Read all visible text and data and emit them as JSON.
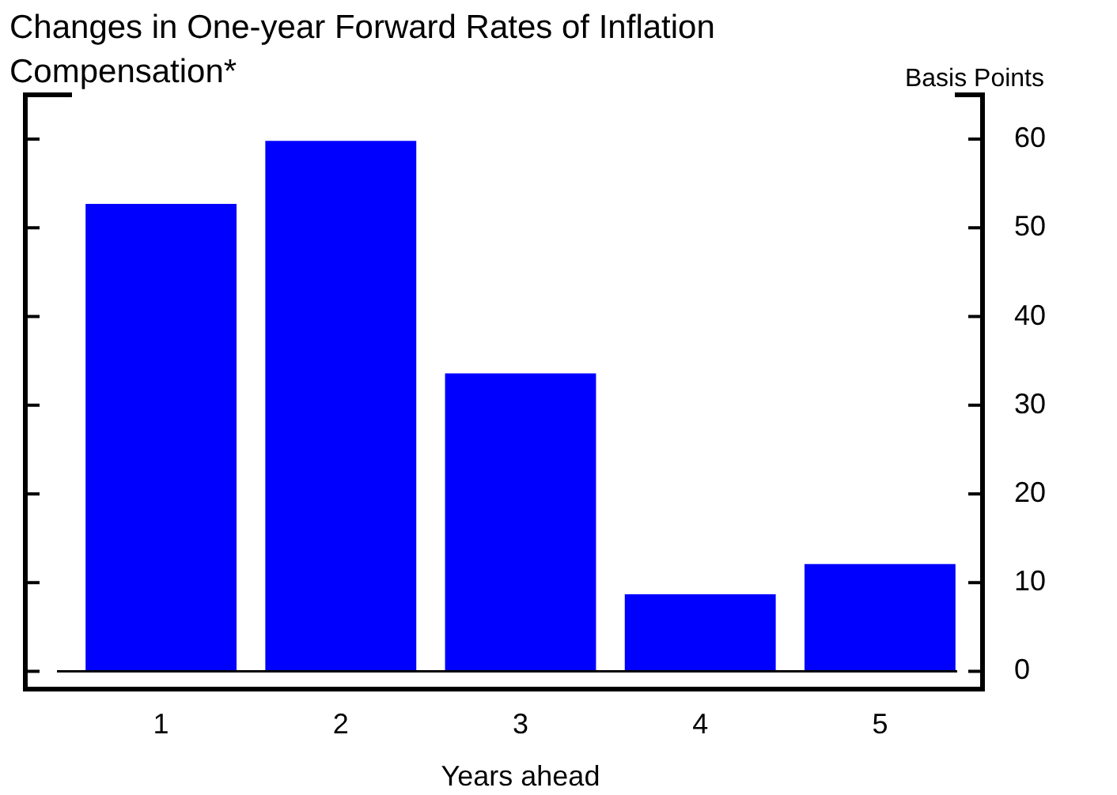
{
  "chart_data": {
    "type": "bar",
    "title": "Changes in One-year Forward Rates of Inflation Compensation*",
    "ylabel": "Basis Points",
    "xlabel": "Years ahead",
    "categories": [
      "1",
      "2",
      "3",
      "4",
      "5"
    ],
    "values": [
      52.7,
      59.8,
      33.6,
      8.7,
      12.1
    ],
    "color": "#0000ff",
    "ylim": [
      -2,
      65
    ],
    "yticks": [
      0,
      10,
      20,
      30,
      40,
      50,
      60
    ],
    "ref_lines": [
      {
        "axis": "y",
        "value": 0,
        "color": "#000000"
      }
    ],
    "grid": false,
    "legend": false
  }
}
